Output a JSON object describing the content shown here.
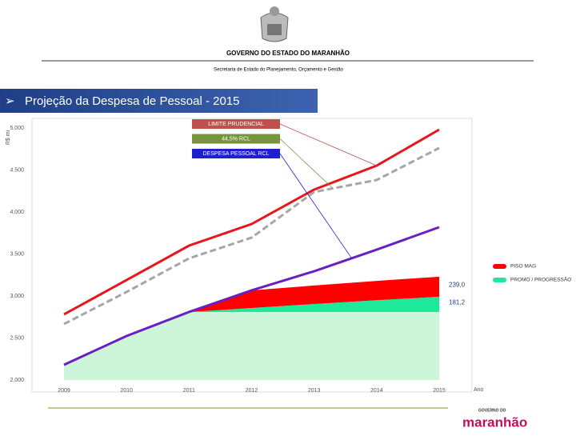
{
  "header": {
    "title": "GOVERNO DO ESTADO DO MARANHÃO",
    "subtitle": "Secretaria de Estado do Planejamento, Orçamento e Gestão"
  },
  "slide_title": "Projeção da Despesa de Pessoal - 2015",
  "footer": {
    "logo_top": "GOVERNO DO",
    "logo_text": "maranhão"
  },
  "chart_data": {
    "type": "line",
    "y_label": "R$ mi",
    "x_label": "Ano",
    "categories": [
      "2009",
      "2010",
      "2011",
      "2012",
      "2013",
      "2014",
      "2015"
    ],
    "ylim": [
      2000,
      5000
    ],
    "yticks": [
      {
        "value": 2000,
        "label": "2.000"
      },
      {
        "value": 2500,
        "label": "2.500"
      },
      {
        "value": 3000,
        "label": "3.000"
      },
      {
        "value": 3500,
        "label": "3.500"
      },
      {
        "value": 4000,
        "label": "4.000"
      },
      {
        "value": 4500,
        "label": "4.500"
      },
      {
        "value": 5000,
        "label": "5.000"
      }
    ],
    "grid": false,
    "series": [
      {
        "mark": "area",
        "color": "#cdf5d9",
        "values": [
          2181,
          2524,
          2810,
          2810,
          2810,
          2810,
          2810
        ]
      },
      {
        "mark": "area",
        "name": "PROMO / PROGRESSÃO",
        "color": "#1ee89a",
        "values": [
          null,
          null,
          0,
          47,
          95,
          140,
          181.2
        ],
        "value_labels": [
          null,
          null,
          null,
          null,
          null,
          null,
          "181,2"
        ]
      },
      {
        "mark": "area",
        "name": "PISO MAG",
        "color": "#ff0000",
        "values": [
          null,
          null,
          0,
          210,
          220,
          230,
          239.0
        ],
        "value_labels": [
          null,
          null,
          null,
          null,
          null,
          null,
          "239,0"
        ]
      },
      {
        "mark": "line",
        "name": "LIMITE PRUDENCIAL",
        "color": "#e8151b",
        "box_color": "#c0504d",
        "dash": false,
        "values": [
          2781,
          3190,
          3600,
          3857,
          4267,
          4552,
          4981
        ]
      },
      {
        "mark": "line",
        "name": "44,5% RCL",
        "color": "#a6a6a6",
        "box_color": "#77933c",
        "dash": true,
        "values": [
          2667,
          3048,
          3448,
          3695,
          4238,
          4381,
          4762
        ]
      },
      {
        "mark": "line",
        "name": "DESPESA PESSOAL RCL",
        "color": "#6a1fc2",
        "box_color": "#1f1fd0",
        "dash": false,
        "values": [
          2181,
          2524,
          2810,
          3067,
          3295,
          3552,
          3819
        ]
      }
    ]
  }
}
